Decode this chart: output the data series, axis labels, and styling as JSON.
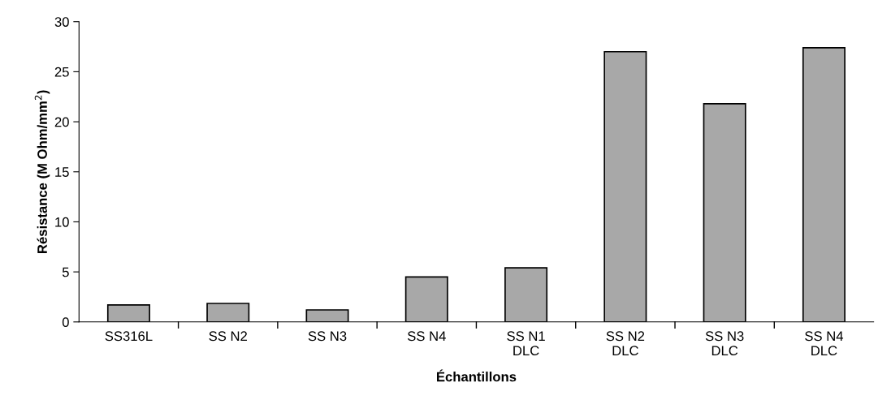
{
  "chart_data": {
    "type": "bar",
    "xlabel": "Échantillons",
    "ylabel": "Résistance (M Ohm/mm$^{2}$)",
    "categories": [
      "SS316L",
      "SS N2",
      "SS N3",
      "SS N4",
      "SS N1\nDLC",
      "SS N2\nDLC",
      "SS N3\nDLC",
      "SS N4\nDLC"
    ],
    "values": [
      1.7,
      1.85,
      1.2,
      4.5,
      5.4,
      27.0,
      21.8,
      27.4
    ],
    "color": "#a8a8a8",
    "ylim": [
      0,
      30
    ],
    "yticks": [
      0,
      5,
      10,
      15,
      20,
      25,
      30
    ],
    "grid": false,
    "legend": false
  }
}
